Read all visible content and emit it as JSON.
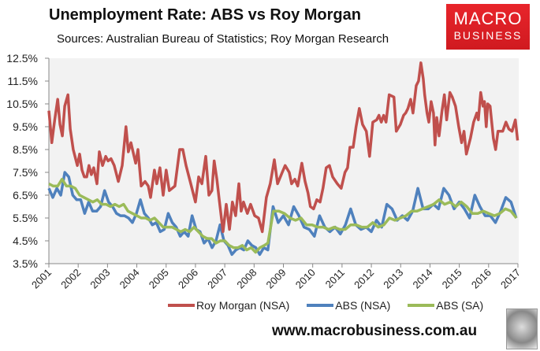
{
  "header": {
    "title": "Unemployment Rate: ABS vs Roy Morgan",
    "subtitle": "Sources: Australian Bureau of Statistics; Roy Morgan Research"
  },
  "logo": {
    "line1": "MACRO",
    "line2": "BUSINESS"
  },
  "footer": {
    "url": "www.macrobusiness.com.au"
  },
  "chart_data": {
    "type": "line",
    "title": "Unemployment Rate: ABS vs Roy Morgan",
    "xlim": [
      2001,
      2017
    ],
    "ylim": [
      3.5,
      12.5
    ],
    "y_ticks": [
      "3.5%",
      "4.5%",
      "5.5%",
      "6.5%",
      "7.5%",
      "8.5%",
      "9.5%",
      "10.5%",
      "11.5%",
      "12.5%"
    ],
    "x_ticks": [
      "2001",
      "2002",
      "2003",
      "2004",
      "2005",
      "2006",
      "2007",
      "2008",
      "2009",
      "2010",
      "2011",
      "2012",
      "2013",
      "2014",
      "2015",
      "2016",
      "2017"
    ],
    "legend_position": "bottom",
    "series": [
      {
        "name": "Roy Morgan (NSA)",
        "color": "#c0504d",
        "points": [
          [
            2001.0,
            10.2
          ],
          [
            2001.05,
            9.5
          ],
          [
            2001.1,
            8.8
          ],
          [
            2001.2,
            9.8
          ],
          [
            2001.3,
            10.7
          ],
          [
            2001.38,
            9.6
          ],
          [
            2001.46,
            9.1
          ],
          [
            2001.54,
            10.4
          ],
          [
            2001.65,
            10.9
          ],
          [
            2001.73,
            9.4
          ],
          [
            2001.83,
            8.5
          ],
          [
            2001.97,
            7.8
          ],
          [
            2002.05,
            8.3
          ],
          [
            2002.13,
            7.6
          ],
          [
            2002.21,
            7.3
          ],
          [
            2002.29,
            7.3
          ],
          [
            2002.37,
            7.8
          ],
          [
            2002.45,
            7.4
          ],
          [
            2002.53,
            7.7
          ],
          [
            2002.64,
            7.0
          ],
          [
            2002.72,
            8.4
          ],
          [
            2002.83,
            7.8
          ],
          [
            2002.94,
            8.2
          ],
          [
            2003.02,
            8.0
          ],
          [
            2003.12,
            8.1
          ],
          [
            2003.23,
            7.8
          ],
          [
            2003.37,
            7.1
          ],
          [
            2003.5,
            7.8
          ],
          [
            2003.63,
            9.5
          ],
          [
            2003.71,
            8.4
          ],
          [
            2003.8,
            8.8
          ],
          [
            2003.96,
            7.9
          ],
          [
            2004.04,
            8.5
          ],
          [
            2004.15,
            6.9
          ],
          [
            2004.28,
            7.1
          ],
          [
            2004.39,
            6.9
          ],
          [
            2004.47,
            6.4
          ],
          [
            2004.6,
            7.6
          ],
          [
            2004.68,
            7.0
          ],
          [
            2004.79,
            7.7
          ],
          [
            2004.9,
            6.5
          ],
          [
            2005.0,
            7.6
          ],
          [
            2005.11,
            6.7
          ],
          [
            2005.3,
            6.9
          ],
          [
            2005.46,
            8.5
          ],
          [
            2005.57,
            8.5
          ],
          [
            2005.68,
            7.8
          ],
          [
            2005.84,
            7.0
          ],
          [
            2006.0,
            6.2
          ],
          [
            2006.11,
            7.3
          ],
          [
            2006.22,
            7.0
          ],
          [
            2006.35,
            8.2
          ],
          [
            2006.46,
            6.5
          ],
          [
            2006.56,
            6.7
          ],
          [
            2006.64,
            8.0
          ],
          [
            2006.73,
            7.2
          ],
          [
            2006.81,
            6.3
          ],
          [
            2006.94,
            4.9
          ],
          [
            2007.05,
            6.1
          ],
          [
            2007.16,
            5.0
          ],
          [
            2007.26,
            6.2
          ],
          [
            2007.37,
            5.6
          ],
          [
            2007.48,
            7.0
          ],
          [
            2007.56,
            5.8
          ],
          [
            2007.64,
            6.2
          ],
          [
            2007.77,
            5.7
          ],
          [
            2007.88,
            6.1
          ],
          [
            2008.02,
            5.6
          ],
          [
            2008.15,
            5.5
          ],
          [
            2008.28,
            4.9
          ],
          [
            2008.42,
            6.4
          ],
          [
            2008.55,
            7.0
          ],
          [
            2008.69,
            8.05
          ],
          [
            2008.8,
            7.0
          ],
          [
            2008.96,
            7.5
          ],
          [
            2009.06,
            7.8
          ],
          [
            2009.2,
            7.5
          ],
          [
            2009.28,
            7.0
          ],
          [
            2009.39,
            7.2
          ],
          [
            2009.49,
            6.9
          ],
          [
            2009.63,
            7.9
          ],
          [
            2009.74,
            7.1
          ],
          [
            2009.84,
            6.6
          ],
          [
            2009.92,
            6.0
          ],
          [
            2010.03,
            5.9
          ],
          [
            2010.14,
            6.3
          ],
          [
            2010.25,
            6.2
          ],
          [
            2010.35,
            6.8
          ],
          [
            2010.46,
            7.7
          ],
          [
            2010.57,
            7.8
          ],
          [
            2010.68,
            7.3
          ],
          [
            2010.84,
            7.0
          ],
          [
            2010.97,
            6.8
          ],
          [
            2011.1,
            7.5
          ],
          [
            2011.19,
            7.7
          ],
          [
            2011.27,
            8.6
          ],
          [
            2011.38,
            8.6
          ],
          [
            2011.48,
            9.5
          ],
          [
            2011.59,
            10.3
          ],
          [
            2011.7,
            9.6
          ],
          [
            2011.83,
            9.3
          ],
          [
            2011.94,
            8.2
          ],
          [
            2012.05,
            9.7
          ],
          [
            2012.18,
            9.8
          ],
          [
            2012.26,
            10.0
          ],
          [
            2012.34,
            9.7
          ],
          [
            2012.42,
            10.0
          ],
          [
            2012.5,
            9.7
          ],
          [
            2012.61,
            10.9
          ],
          [
            2012.77,
            10.8
          ],
          [
            2012.85,
            9.3
          ],
          [
            2012.99,
            9.6
          ],
          [
            2013.1,
            10.0
          ],
          [
            2013.17,
            10.1
          ],
          [
            2013.25,
            10.3
          ],
          [
            2013.34,
            10.7
          ],
          [
            2013.42,
            10.1
          ],
          [
            2013.53,
            11.3
          ],
          [
            2013.61,
            11.5
          ],
          [
            2013.69,
            12.3
          ],
          [
            2013.77,
            11.6
          ],
          [
            2013.82,
            10.9
          ],
          [
            2013.9,
            10.1
          ],
          [
            2013.96,
            9.7
          ],
          [
            2014.04,
            10.6
          ],
          [
            2014.12,
            10.1
          ],
          [
            2014.17,
            8.7
          ],
          [
            2014.23,
            9.9
          ],
          [
            2014.31,
            9.1
          ],
          [
            2014.41,
            10.2
          ],
          [
            2014.49,
            10.9
          ],
          [
            2014.57,
            9.8
          ],
          [
            2014.68,
            11.0
          ],
          [
            2014.76,
            10.8
          ],
          [
            2014.87,
            10.4
          ],
          [
            2014.98,
            9.5
          ],
          [
            2015.08,
            8.8
          ],
          [
            2015.16,
            9.3
          ],
          [
            2015.24,
            8.3
          ],
          [
            2015.38,
            9.0
          ],
          [
            2015.49,
            9.7
          ],
          [
            2015.6,
            10.1
          ],
          [
            2015.65,
            9.8
          ],
          [
            2015.73,
            11.0
          ],
          [
            2015.81,
            10.4
          ],
          [
            2015.86,
            10.6
          ],
          [
            2015.92,
            9.5
          ],
          [
            2015.97,
            10.5
          ],
          [
            2016.05,
            10.4
          ],
          [
            2016.16,
            9.0
          ],
          [
            2016.24,
            8.5
          ],
          [
            2016.32,
            9.3
          ],
          [
            2016.48,
            9.3
          ],
          [
            2016.59,
            9.7
          ],
          [
            2016.69,
            9.4
          ],
          [
            2016.8,
            9.3
          ],
          [
            2016.91,
            9.8
          ],
          [
            2016.99,
            8.9
          ]
        ]
      },
      {
        "name": "ABS (NSA)",
        "color": "#4f81bd",
        "segments": [
          {
            "from": 2001.0,
            "to": 2008.33,
            "values": [
              6.8,
              6.4,
              6.8,
              6.5,
              7.5,
              7.3,
              6.5,
              6.3,
              6.3,
              5.7,
              6.2,
              5.8,
              5.8,
              6.0,
              6.7,
              6.2,
              6.0,
              5.7,
              5.6,
              5.6,
              5.5,
              5.3,
              5.7,
              6.3,
              5.7,
              5.5,
              5.2,
              5.3,
              4.9,
              5.0,
              5.7,
              5.3,
              5.1,
              4.7,
              4.9,
              4.7,
              5.6,
              5.0,
              4.9,
              4.4,
              4.6,
              4.2,
              4.5,
              5.2,
              4.5,
              4.3,
              3.9,
              4.1,
              4.2,
              4.1,
              4.5,
              4.3,
              4.2,
              3.9,
              4.2
            ]
          },
          {
            "from": 2008.47,
            "to": 2016.94,
            "values": [
              4.1,
              6.0,
              5.3,
              5.6,
              5.2,
              6.0,
              5.6,
              5.1,
              5.0,
              4.7,
              5.6,
              5.1,
              4.9,
              5.1,
              4.8,
              5.2,
              5.9,
              5.2,
              5.0,
              5.1,
              4.9,
              5.4,
              5.1,
              6.1,
              5.9,
              5.4,
              5.6,
              5.4,
              5.8,
              6.8,
              5.9,
              5.9,
              6.1,
              5.9,
              6.8,
              6.5,
              5.9,
              6.2,
              5.9,
              5.5,
              6.5,
              6.0,
              5.6,
              5.6,
              5.3,
              5.8,
              6.4,
              6.2,
              5.5
            ]
          }
        ]
      },
      {
        "name": "ABS (SA)",
        "color": "#9bbb59",
        "segments": [
          {
            "from": 2001.0,
            "to": 2008.35,
            "values": [
              7.0,
              6.9,
              6.9,
              7.2,
              6.9,
              6.9,
              6.8,
              6.5,
              6.4,
              6.3,
              6.2,
              6.3,
              6.1,
              6.1,
              6.0,
              6.1,
              6.0,
              6.1,
              5.8,
              5.7,
              5.6,
              5.5,
              5.5,
              5.4,
              5.5,
              5.3,
              5.1,
              5.1,
              5.1,
              5.0,
              4.9,
              5.0,
              4.9,
              5.1,
              4.9,
              4.7,
              4.6,
              4.6,
              4.4,
              4.5,
              4.5,
              4.3,
              4.2,
              4.2,
              4.3,
              4.1,
              4.2,
              4.0,
              4.2,
              4.3
            ]
          },
          {
            "from": 2008.47,
            "to": 2016.95,
            "values": [
              4.4,
              5.8,
              5.8,
              5.7,
              5.5,
              5.4,
              5.5,
              5.2,
              5.2,
              5.1,
              5.1,
              5.0,
              5.1,
              5.0,
              5.0,
              5.2,
              5.2,
              5.1,
              5.1,
              5.3,
              5.1,
              5.2,
              5.5,
              5.4,
              5.5,
              5.6,
              5.8,
              5.8,
              5.9,
              6.0,
              6.1,
              6.3,
              6.1,
              6.2,
              6.0,
              6.2,
              6.0,
              5.7,
              5.7,
              5.8,
              5.7,
              5.6,
              5.7,
              5.9,
              5.8,
              5.5
            ]
          }
        ]
      }
    ]
  }
}
